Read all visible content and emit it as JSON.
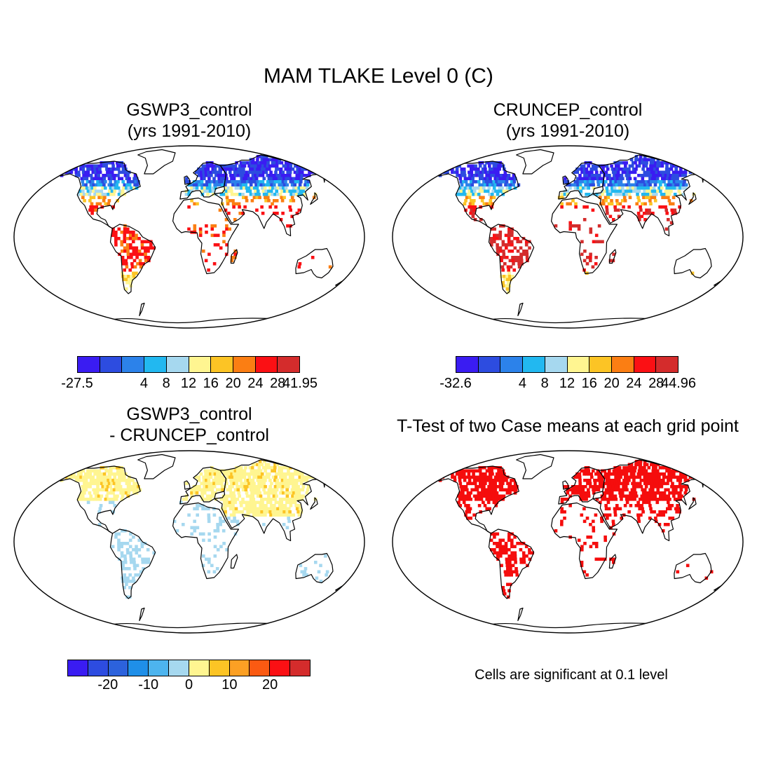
{
  "figure": {
    "title": "MAM TLAKE Level 0 (C)"
  },
  "panels": {
    "p1": {
      "title_line1": "GSWP3_control",
      "title_line2": "(yrs 1991-2010)",
      "scheme": "p1"
    },
    "p2": {
      "title_line1": "CRUNCEP_control",
      "title_line2": "(yrs 1991-2010)",
      "scheme": "p2"
    },
    "p3": {
      "title_line1": "GSWP3_control",
      "title_line2": "- CRUNCEP_control",
      "scheme": "p3"
    },
    "p4": {
      "title_line1": "T-Test of two Case means at each grid point",
      "scheme": "p4",
      "note": "Cells are significant at 0.1 level"
    }
  },
  "colorbars": {
    "cb1": {
      "colors": [
        "#3a1cf2",
        "#2d4ce0",
        "#2c82ea",
        "#22b8f0",
        "#a6d8ef",
        "#fff591",
        "#fcc425",
        "#fb7e13",
        "#fb1014",
        "#d42c2c"
      ],
      "labels": [
        "-27.5",
        "4",
        "8",
        "12",
        "16",
        "20",
        "24",
        "28",
        "41.95"
      ],
      "label_positions": [
        0,
        3,
        4,
        5,
        6,
        7,
        8,
        9,
        10
      ],
      "min": -27.5,
      "max": 41.95
    },
    "cb2": {
      "colors": [
        "#3a1cf2",
        "#2d4ce0",
        "#2c82ea",
        "#22b8f0",
        "#a6d8ef",
        "#fff591",
        "#fcc425",
        "#fb7e13",
        "#fb1014",
        "#d42c2c"
      ],
      "labels": [
        "-32.6",
        "4",
        "8",
        "12",
        "16",
        "20",
        "24",
        "28",
        "44.96"
      ],
      "label_positions": [
        0,
        3,
        4,
        5,
        6,
        7,
        8,
        9,
        10
      ],
      "min": -32.6,
      "max": 44.96
    },
    "cb3": {
      "colors": [
        "#3a1cf2",
        "#2d4ce0",
        "#2c62dc",
        "#1f8fe8",
        "#4db4ee",
        "#a6d8ef",
        "#fff591",
        "#fcc425",
        "#fca024",
        "#fb5a12",
        "#fb1014",
        "#d42c2c"
      ],
      "labels": [
        "-20",
        "-10",
        "0",
        "10",
        "20"
      ],
      "label_positions": [
        2,
        4,
        6,
        8,
        10
      ]
    }
  }
}
